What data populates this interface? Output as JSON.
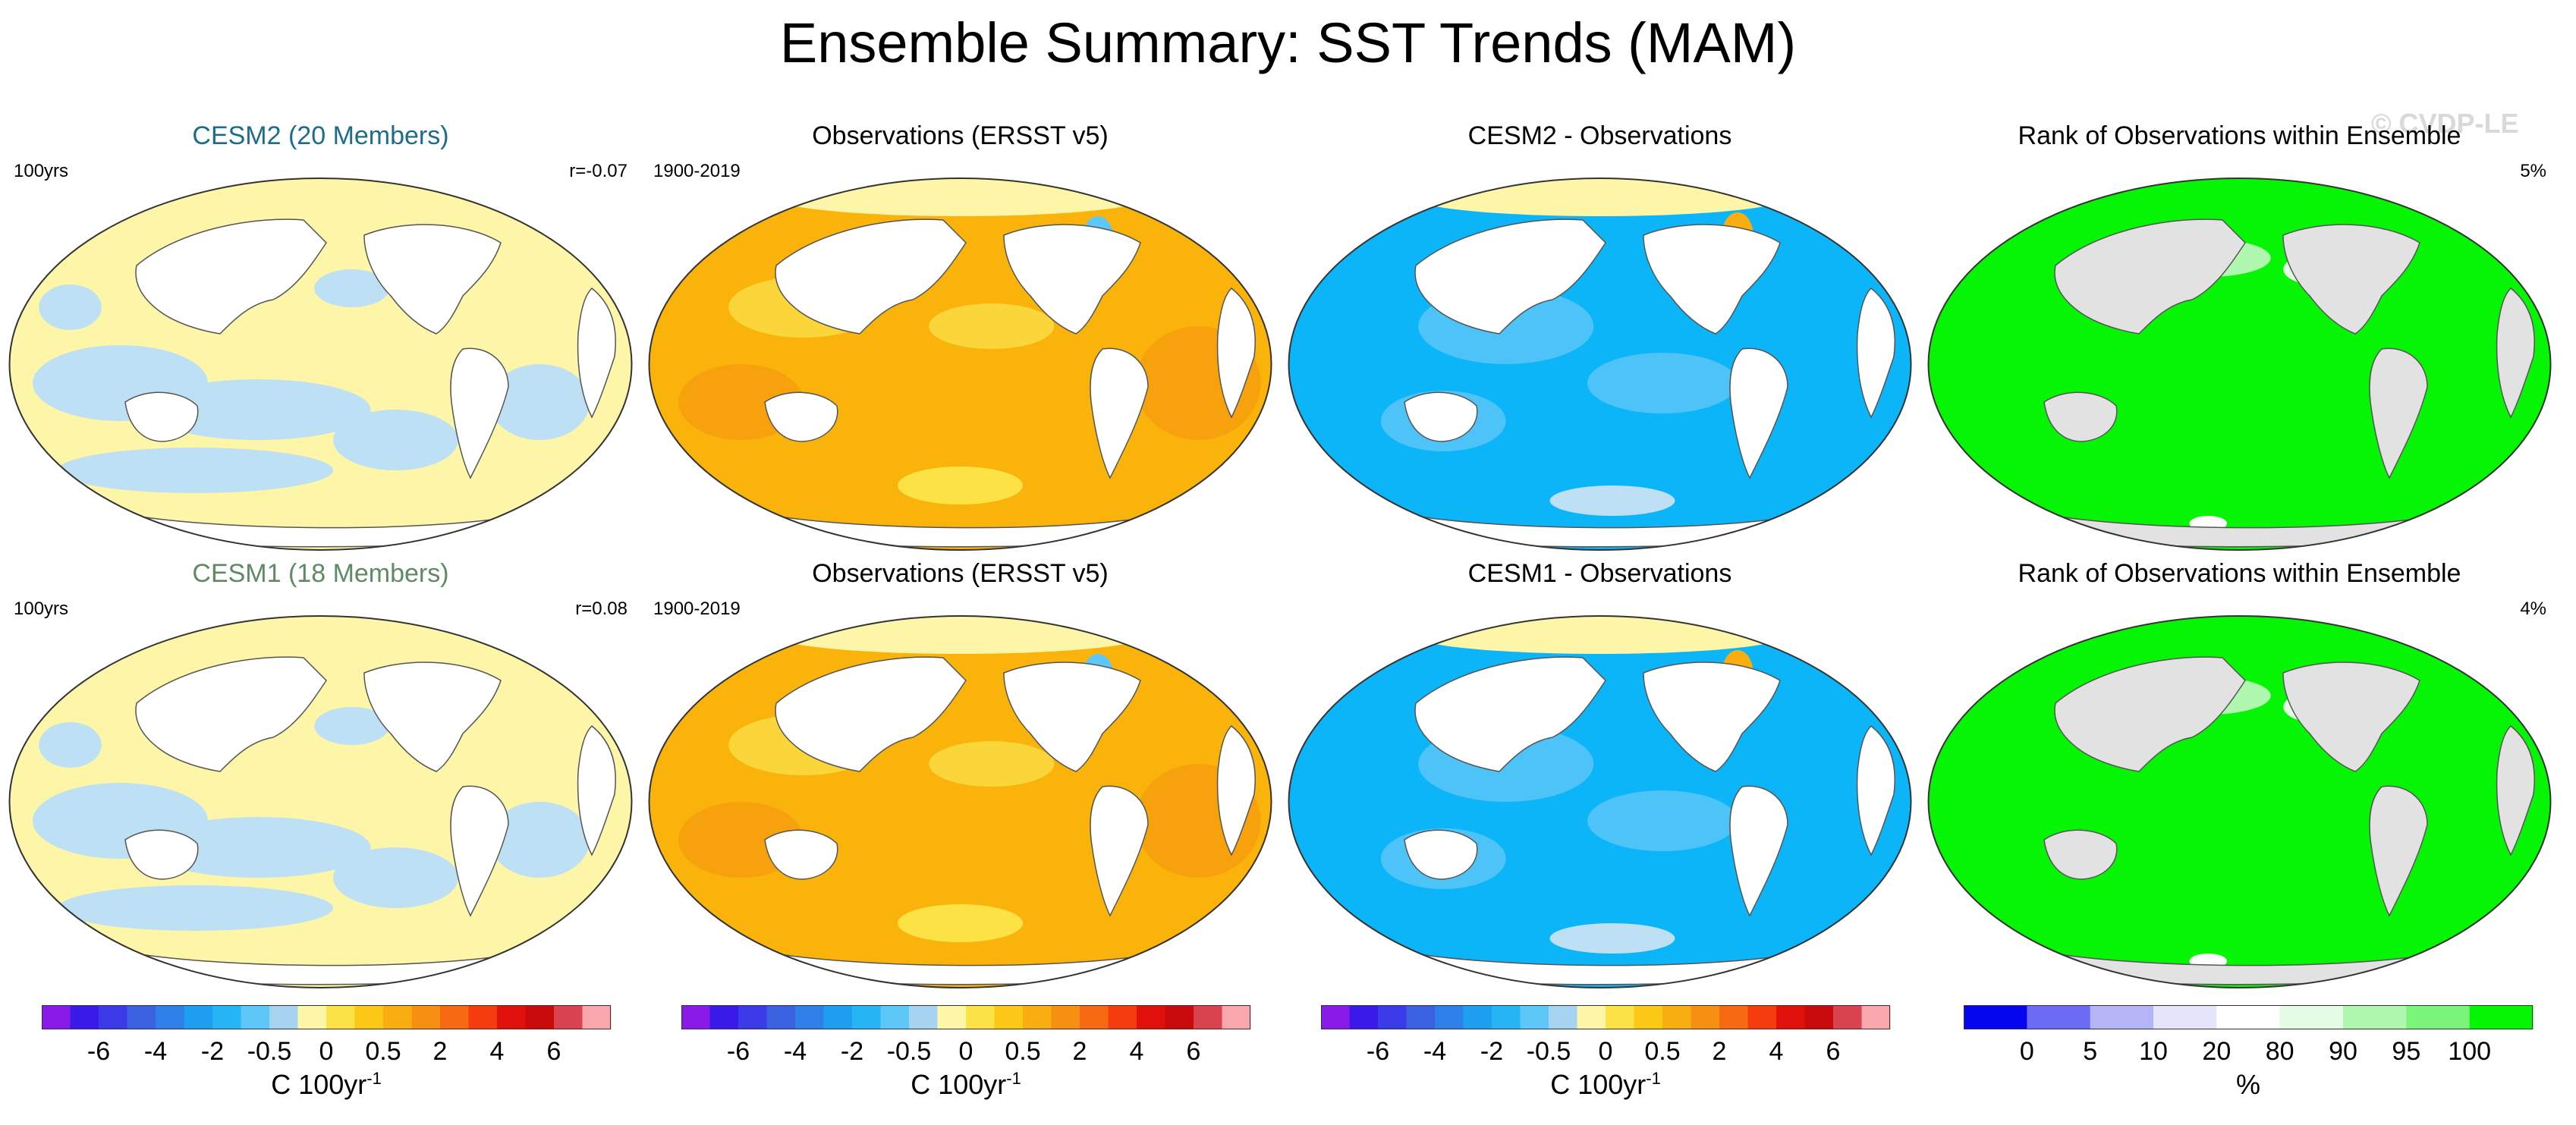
{
  "title": "Ensemble Summary: SST Trends (MAM)",
  "watermark": "© CVDP-LE",
  "colors": {
    "land": "#ffffff",
    "land_gray": "#e2e2e2",
    "cesm2_title": "#1d6d8a",
    "cesm1_title": "#5f8a63",
    "light_yellow": "#fdf5a8",
    "light_blue": "#bde0f5",
    "orange": "#f9b30a",
    "dark_orange": "#f7a10c",
    "blue": "#0bb5f7",
    "mid_blue": "#4dc3f7",
    "green": "#05f505"
  },
  "panels": [
    {
      "row": 1,
      "col": 1,
      "title": "CESM2 (20 Members)",
      "left_note": "100yrs",
      "right_note": "r=-0.07",
      "style": "ensemble",
      "title_color": "#1d6d8a"
    },
    {
      "row": 1,
      "col": 2,
      "title": "Observations (ERSST v5)",
      "left_note": "1900-2019",
      "right_note": "",
      "style": "obs",
      "title_color": "#000000"
    },
    {
      "row": 1,
      "col": 3,
      "title": "CESM2 - Observations",
      "left_note": "",
      "right_note": "",
      "style": "diff",
      "title_color": "#000000"
    },
    {
      "row": 1,
      "col": 4,
      "title": "Rank of Observations within Ensemble",
      "left_note": "",
      "right_note": "5%",
      "style": "rank",
      "title_color": "#000000"
    },
    {
      "row": 2,
      "col": 1,
      "title": "CESM1 (18 Members)",
      "left_note": "100yrs",
      "right_note": "r=0.08",
      "style": "ensemble",
      "title_color": "#5f8a63"
    },
    {
      "row": 2,
      "col": 2,
      "title": "Observations (ERSST v5)",
      "left_note": "1900-2019",
      "right_note": "",
      "style": "obs",
      "title_color": "#000000"
    },
    {
      "row": 2,
      "col": 3,
      "title": "CESM1 - Observations",
      "left_note": "",
      "right_note": "",
      "style": "diff",
      "title_color": "#000000"
    },
    {
      "row": 2,
      "col": 4,
      "title": "Rank of Observations within Ensemble",
      "left_note": "",
      "right_note": "4%",
      "style": "rank",
      "title_color": "#000000"
    }
  ],
  "colorbars": [
    {
      "units": "C 100yr",
      "units_sup": "-1",
      "colors": [
        "#8a1ae8",
        "#3a1ae8",
        "#3a3ae8",
        "#3a62e0",
        "#2f7fe8",
        "#1f9ff2",
        "#25b5f5",
        "#5dc8f7",
        "#a6d4f0",
        "#fdf5a8",
        "#fde245",
        "#fac815",
        "#f8ad10",
        "#f78f12",
        "#f76a12",
        "#f53c0f",
        "#e0100a",
        "#c80a0a",
        "#d8434f",
        "#f9a6ad"
      ],
      "labels": [
        "-6",
        "-4",
        "-2",
        "-0.5",
        "0",
        "0.5",
        "2",
        "4",
        "6"
      ],
      "label_boundaries": [
        2,
        4,
        6,
        8,
        10,
        12,
        14,
        16,
        18
      ]
    },
    {
      "units": "C 100yr",
      "units_sup": "-1",
      "colors": [
        "#8a1ae8",
        "#3a1ae8",
        "#3a3ae8",
        "#3a62e0",
        "#2f7fe8",
        "#1f9ff2",
        "#25b5f5",
        "#5dc8f7",
        "#a6d4f0",
        "#fdf5a8",
        "#fde245",
        "#fac815",
        "#f8ad10",
        "#f78f12",
        "#f76a12",
        "#f53c0f",
        "#e0100a",
        "#c80a0a",
        "#d8434f",
        "#f9a6ad"
      ],
      "labels": [
        "-6",
        "-4",
        "-2",
        "-0.5",
        "0",
        "0.5",
        "2",
        "4",
        "6"
      ],
      "label_boundaries": [
        2,
        4,
        6,
        8,
        10,
        12,
        14,
        16,
        18
      ]
    },
    {
      "units": "C 100yr",
      "units_sup": "-1",
      "colors": [
        "#8a1ae8",
        "#3a1ae8",
        "#3a3ae8",
        "#3a62e0",
        "#2f7fe8",
        "#1f9ff2",
        "#25b5f5",
        "#5dc8f7",
        "#a6d4f0",
        "#fdf5a8",
        "#fde245",
        "#fac815",
        "#f8ad10",
        "#f78f12",
        "#f76a12",
        "#f53c0f",
        "#e0100a",
        "#c80a0a",
        "#d8434f",
        "#f9a6ad"
      ],
      "labels": [
        "-6",
        "-4",
        "-2",
        "-0.5",
        "0",
        "0.5",
        "2",
        "4",
        "6"
      ],
      "label_boundaries": [
        2,
        4,
        6,
        8,
        10,
        12,
        14,
        16,
        18
      ]
    },
    {
      "units": "%",
      "units_sup": "",
      "colors": [
        "#0505f0",
        "#6b6bf5",
        "#b4b4f7",
        "#e4e4fb",
        "#ffffff",
        "#e4fbe4",
        "#b0f7b0",
        "#7af57a",
        "#05f505"
      ],
      "labels": [
        "0",
        "5",
        "10",
        "20",
        "80",
        "90",
        "95",
        "100"
      ],
      "label_boundaries": [
        1,
        2,
        3,
        4,
        5,
        6,
        7,
        8
      ]
    }
  ],
  "chart_data": {
    "type": "heatmap",
    "title": "Ensemble Summary: SST Trends (MAM)",
    "projection": "Robinson, Pacific-centered",
    "panels": [
      {
        "name": "CESM2 (20 Members)",
        "trend_period": "100yrs",
        "pattern_correlation": -0.07,
        "dominant_range_C_per_100yr": [
          -0.5,
          0.5
        ]
      },
      {
        "name": "Observations (ERSST v5)",
        "period": "1900-2019",
        "dominant_range_C_per_100yr": [
          0.5,
          2
        ]
      },
      {
        "name": "CESM2 - Observations",
        "dominant_range_C_per_100yr": [
          -2,
          -0.5
        ]
      },
      {
        "name": "Rank of Observations within Ensemble",
        "value_pct_annotation": 5,
        "dominant_range_pct": [
          95,
          100
        ]
      },
      {
        "name": "CESM1 (18 Members)",
        "trend_period": "100yrs",
        "pattern_correlation": 0.08,
        "dominant_range_C_per_100yr": [
          -0.5,
          0.5
        ]
      },
      {
        "name": "Observations (ERSST v5)",
        "period": "1900-2019",
        "dominant_range_C_per_100yr": [
          0.5,
          2
        ]
      },
      {
        "name": "CESM1 - Observations",
        "dominant_range_C_per_100yr": [
          -2,
          -0.5
        ]
      },
      {
        "name": "Rank of Observations within Ensemble",
        "value_pct_annotation": 4,
        "dominant_range_pct": [
          95,
          100
        ]
      }
    ],
    "colorbar_temperature": {
      "units": "C 100yr-1",
      "ticks": [
        -6,
        -4,
        -2,
        -0.5,
        0,
        0.5,
        2,
        4,
        6
      ]
    },
    "colorbar_rank": {
      "units": "%",
      "ticks": [
        0,
        5,
        10,
        20,
        80,
        90,
        95,
        100
      ]
    }
  }
}
